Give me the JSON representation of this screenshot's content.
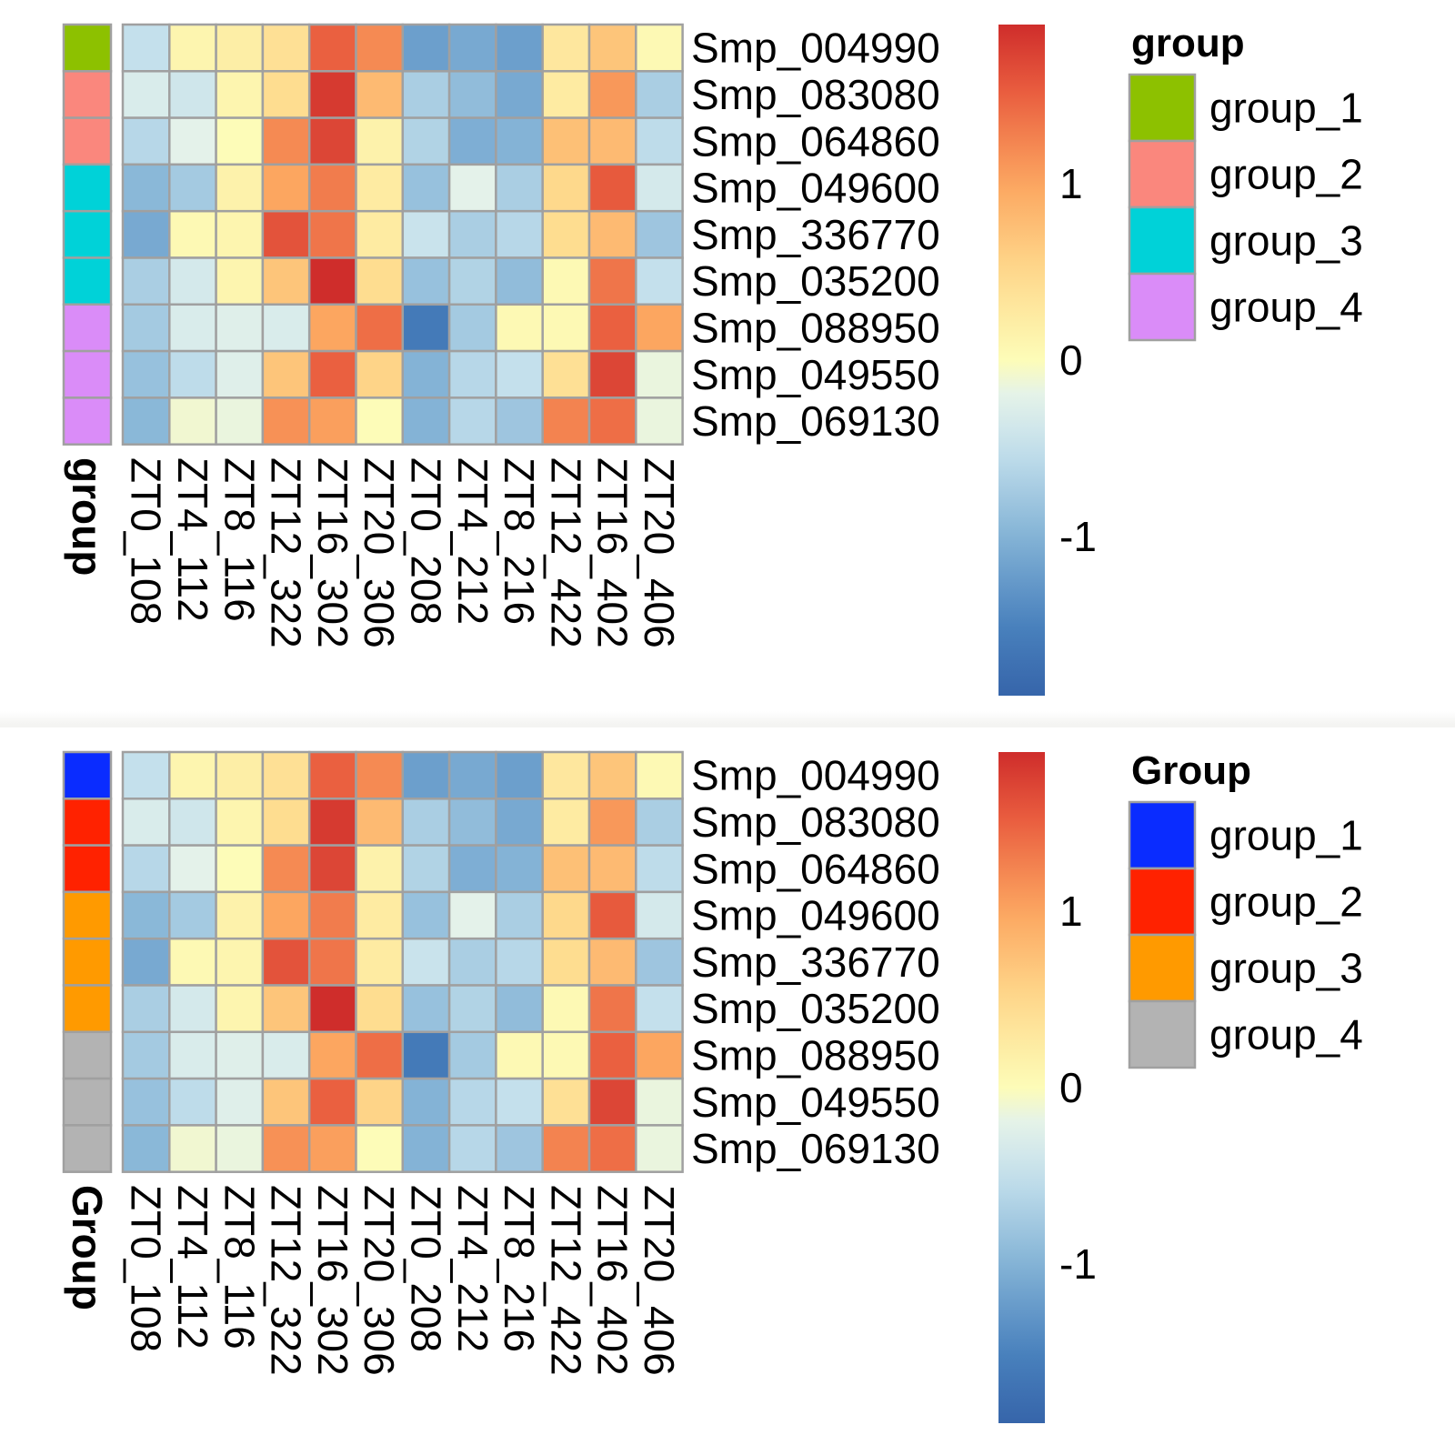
{
  "chart_data": [
    {
      "type": "heatmap",
      "columns": [
        "ZT0_108",
        "ZT4_112",
        "ZT8_116",
        "ZT12_322",
        "ZT16_302",
        "ZT20_306",
        "ZT0_208",
        "ZT4_212",
        "ZT8_216",
        "ZT12_422",
        "ZT16_402",
        "ZT20_406"
      ],
      "rows": [
        "Smp_004990",
        "Smp_083080",
        "Smp_064860",
        "Smp_049600",
        "Smp_336770",
        "Smp_035200",
        "Smp_088950",
        "Smp_049550",
        "Smp_069130"
      ],
      "values": [
        [
          -0.5,
          0.1,
          0.2,
          0.4,
          1.5,
          1.2,
          -1.2,
          -1.1,
          -1.2,
          0.3,
          0.7,
          0.05
        ],
        [
          -0.3,
          -0.4,
          0.1,
          0.45,
          1.8,
          0.8,
          -0.7,
          -0.9,
          -1.1,
          0.25,
          1.1,
          -0.7
        ],
        [
          -0.6,
          -0.2,
          0.0,
          1.2,
          1.7,
          0.15,
          -0.65,
          -1.05,
          -1.0,
          0.75,
          0.8,
          -0.55
        ],
        [
          -0.95,
          -0.75,
          0.15,
          1.0,
          1.3,
          0.25,
          -0.85,
          -0.2,
          -0.7,
          0.5,
          1.55,
          -0.35
        ],
        [
          -1.1,
          0.05,
          0.1,
          1.6,
          1.35,
          0.25,
          -0.45,
          -0.7,
          -0.6,
          0.45,
          0.8,
          -0.8
        ],
        [
          -0.7,
          -0.35,
          0.1,
          0.7,
          1.9,
          0.45,
          -0.85,
          -0.65,
          -0.9,
          0.05,
          1.35,
          -0.5
        ],
        [
          -0.75,
          -0.3,
          -0.25,
          -0.3,
          1.0,
          1.4,
          -1.6,
          -0.75,
          0.05,
          0.05,
          1.5,
          1.0
        ],
        [
          -0.85,
          -0.55,
          -0.25,
          0.7,
          1.5,
          0.55,
          -1.0,
          -0.6,
          -0.5,
          0.4,
          1.7,
          -0.15
        ],
        [
          -0.95,
          -0.1,
          -0.15,
          1.15,
          1.05,
          0.0,
          -1.0,
          -0.6,
          -0.8,
          1.25,
          1.4,
          -0.15
        ]
      ],
      "colorbar": {
        "ticks": [
          1,
          0,
          -1
        ],
        "range": [
          -1.9,
          1.9
        ],
        "palette": "RdYlBu (reversed)"
      },
      "annotation": {
        "title": "group",
        "row_groups": [
          "group_1",
          "group_2",
          "group_2",
          "group_3",
          "group_3",
          "group_3",
          "group_4",
          "group_4",
          "group_4"
        ]
      },
      "legend": {
        "title": "group",
        "entries": [
          {
            "label": "group_1",
            "color": "#8dc100"
          },
          {
            "label": "group_2",
            "color": "#fa877d"
          },
          {
            "label": "group_3",
            "color": "#00d2d8"
          },
          {
            "label": "group_4",
            "color": "#da8cf8"
          }
        ]
      }
    },
    {
      "type": "heatmap",
      "columns": [
        "ZT0_108",
        "ZT4_112",
        "ZT8_116",
        "ZT12_322",
        "ZT16_302",
        "ZT20_306",
        "ZT0_208",
        "ZT4_212",
        "ZT8_216",
        "ZT12_422",
        "ZT16_402",
        "ZT20_406"
      ],
      "rows": [
        "Smp_004990",
        "Smp_083080",
        "Smp_064860",
        "Smp_049600",
        "Smp_336770",
        "Smp_035200",
        "Smp_088950",
        "Smp_049550",
        "Smp_069130"
      ],
      "values": [
        [
          -0.5,
          0.1,
          0.2,
          0.4,
          1.5,
          1.2,
          -1.2,
          -1.1,
          -1.2,
          0.3,
          0.7,
          0.05
        ],
        [
          -0.3,
          -0.4,
          0.1,
          0.45,
          1.8,
          0.8,
          -0.7,
          -0.9,
          -1.1,
          0.25,
          1.1,
          -0.7
        ],
        [
          -0.6,
          -0.2,
          0.0,
          1.2,
          1.7,
          0.15,
          -0.65,
          -1.05,
          -1.0,
          0.75,
          0.8,
          -0.55
        ],
        [
          -0.95,
          -0.75,
          0.15,
          1.0,
          1.3,
          0.25,
          -0.85,
          -0.2,
          -0.7,
          0.5,
          1.55,
          -0.35
        ],
        [
          -1.1,
          0.05,
          0.1,
          1.6,
          1.35,
          0.25,
          -0.45,
          -0.7,
          -0.6,
          0.45,
          0.8,
          -0.8
        ],
        [
          -0.7,
          -0.35,
          0.1,
          0.7,
          1.9,
          0.45,
          -0.85,
          -0.65,
          -0.9,
          0.05,
          1.35,
          -0.5
        ],
        [
          -0.75,
          -0.3,
          -0.25,
          -0.3,
          1.0,
          1.4,
          -1.6,
          -0.75,
          0.05,
          0.05,
          1.5,
          1.0
        ],
        [
          -0.85,
          -0.55,
          -0.25,
          0.7,
          1.5,
          0.55,
          -1.0,
          -0.6,
          -0.5,
          0.4,
          1.7,
          -0.15
        ],
        [
          -0.95,
          -0.1,
          -0.15,
          1.15,
          1.05,
          0.0,
          -1.0,
          -0.6,
          -0.8,
          1.25,
          1.4,
          -0.15
        ]
      ],
      "colorbar": {
        "ticks": [
          1,
          0,
          -1
        ],
        "range": [
          -1.9,
          1.9
        ],
        "palette": "RdYlBu (reversed)"
      },
      "annotation": {
        "title": "Group",
        "row_groups": [
          "group_1",
          "group_2",
          "group_2",
          "group_3",
          "group_3",
          "group_3",
          "group_4",
          "group_4",
          "group_4"
        ]
      },
      "legend": {
        "title": "Group",
        "entries": [
          {
            "label": "group_1",
            "color": "#0a2cff"
          },
          {
            "label": "group_2",
            "color": "#ff2200"
          },
          {
            "label": "group_3",
            "color": "#ff9a00"
          },
          {
            "label": "group_4",
            "color": "#b3b3b3"
          }
        ]
      }
    }
  ]
}
